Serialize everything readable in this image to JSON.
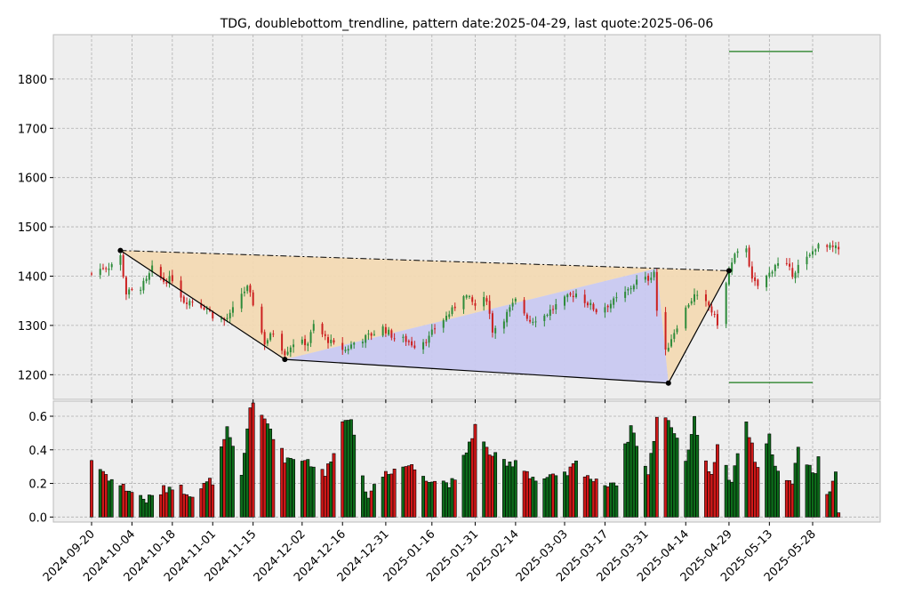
{
  "chart_data": {
    "type": "candlestick",
    "title": "TDG, doublebottom_trendline, pattern date:2025-04-29, last quote:2025-06-06",
    "ylim": [
      1150,
      1890
    ],
    "volume_ylim": [
      -0.03,
      0.69
    ],
    "price_ticks": [
      1200,
      1300,
      1400,
      1500,
      1600,
      1700,
      1800
    ],
    "volume_ticks": [
      0.0,
      0.2,
      0.4,
      0.6
    ],
    "volume_tick_labels": [
      "0.0",
      "0.2",
      "0.4",
      "0.6"
    ],
    "x_tick_dates": [
      "2024-09-20",
      "2024-10-04",
      "2024-10-18",
      "2024-11-01",
      "2024-11-15",
      "2024-12-02",
      "2024-12-16",
      "2024-12-31",
      "2025-01-16",
      "2025-01-31",
      "2025-02-14",
      "2025-03-03",
      "2025-03-17",
      "2025-03-31",
      "2025-04-14",
      "2025-04-29",
      "2025-05-13",
      "2025-05-28"
    ],
    "pattern_points": [
      {
        "date": "2024-09-30",
        "price": 1452
      },
      {
        "date": "2024-11-26",
        "price": 1231
      },
      {
        "date": "2025-04-08",
        "price": 1183
      },
      {
        "date": "2025-04-29",
        "price": 1411
      }
    ],
    "trendline": {
      "from": {
        "date": "2024-09-30",
        "price": 1452
      },
      "to": {
        "date": "2025-04-29",
        "price": 1411
      }
    },
    "target_lines": [
      {
        "price": 1856,
        "from": "2025-04-29",
        "to": "2025-05-28"
      },
      {
        "price": 1184,
        "from": "2025-04-29",
        "to": "2025-05-28"
      }
    ],
    "colors": {
      "up": "#2e8b3a",
      "down": "#cc2020",
      "bg": "#eeeeee",
      "fill_top": "#f2d9b3",
      "fill_bottom": "#c8c8f0",
      "target": "#1a7a1a"
    },
    "price_anchors": [
      [
        "2024-09-20",
        1405
      ],
      [
        "2024-09-24",
        1418
      ],
      [
        "2024-09-26",
        1420
      ],
      [
        "2024-09-30",
        1440
      ],
      [
        "2024-10-02",
        1365
      ],
      [
        "2024-10-07",
        1378
      ],
      [
        "2024-10-09",
        1390
      ],
      [
        "2024-10-11",
        1415
      ],
      [
        "2024-10-15",
        1390
      ],
      [
        "2024-10-18",
        1395
      ],
      [
        "2024-10-22",
        1350
      ],
      [
        "2024-10-25",
        1350
      ],
      [
        "2024-10-30",
        1335
      ],
      [
        "2024-11-01",
        1320
      ],
      [
        "2024-11-05",
        1310
      ],
      [
        "2024-11-07",
        1320
      ],
      [
        "2024-11-11",
        1365
      ],
      [
        "2024-11-13",
        1375
      ],
      [
        "2024-11-15",
        1345
      ],
      [
        "2024-11-19",
        1265
      ],
      [
        "2024-11-22",
        1285
      ],
      [
        "2024-11-26",
        1245
      ],
      [
        "2024-11-29",
        1265
      ],
      [
        "2024-12-04",
        1265
      ],
      [
        "2024-12-06",
        1300
      ],
      [
        "2024-12-10",
        1275
      ],
      [
        "2024-12-13",
        1260
      ],
      [
        "2024-12-17",
        1250
      ],
      [
        "2024-12-20",
        1265
      ],
      [
        "2024-12-24",
        1275
      ],
      [
        "2024-12-30",
        1295
      ],
      [
        "2025-01-03",
        1275
      ],
      [
        "2025-01-07",
        1270
      ],
      [
        "2025-01-10",
        1260
      ],
      [
        "2025-01-15",
        1275
      ],
      [
        "2025-01-17",
        1295
      ],
      [
        "2025-01-23",
        1330
      ],
      [
        "2025-01-27",
        1365
      ],
      [
        "2025-01-31",
        1340
      ],
      [
        "2025-02-04",
        1355
      ],
      [
        "2025-02-06",
        1290
      ],
      [
        "2025-02-10",
        1315
      ],
      [
        "2025-02-14",
        1350
      ],
      [
        "2025-02-19",
        1310
      ],
      [
        "2025-02-24",
        1320
      ],
      [
        "2025-02-28",
        1340
      ],
      [
        "2025-03-05",
        1360
      ],
      [
        "2025-03-07",
        1365
      ],
      [
        "2025-03-11",
        1345
      ],
      [
        "2025-03-14",
        1330
      ],
      [
        "2025-03-19",
        1345
      ],
      [
        "2025-03-24",
        1365
      ],
      [
        "2025-03-28",
        1390
      ],
      [
        "2025-04-01",
        1395
      ],
      [
        "2025-04-03",
        1410
      ],
      [
        "2025-04-04",
        1330
      ],
      [
        "2025-04-07",
        1245
      ],
      [
        "2025-04-09",
        1275
      ],
      [
        "2025-04-11",
        1300
      ],
      [
        "2025-04-15",
        1345
      ],
      [
        "2025-04-17",
        1360
      ],
      [
        "2025-04-22",
        1340
      ],
      [
        "2025-04-25",
        1305
      ],
      [
        "2025-04-29",
        1410
      ],
      [
        "2025-05-01",
        1440
      ],
      [
        "2025-05-05",
        1460
      ],
      [
        "2025-05-07",
        1390
      ],
      [
        "2025-05-09",
        1380
      ],
      [
        "2025-05-13",
        1405
      ],
      [
        "2025-05-15",
        1425
      ],
      [
        "2025-05-19",
        1420
      ],
      [
        "2025-05-21",
        1405
      ],
      [
        "2025-05-23",
        1420
      ],
      [
        "2025-05-27",
        1440
      ],
      [
        "2025-05-29",
        1460
      ],
      [
        "2025-06-02",
        1458
      ],
      [
        "2025-06-06",
        1455
      ]
    ],
    "volume_anchors": [
      [
        "2024-09-20",
        0.34
      ],
      [
        "2024-09-27",
        0.22
      ],
      [
        "2024-10-04",
        0.15
      ],
      [
        "2024-10-09",
        0.1
      ],
      [
        "2024-10-18",
        0.19
      ],
      [
        "2024-10-25",
        0.14
      ],
      [
        "2024-11-01",
        0.22
      ],
      [
        "2024-11-06",
        0.51
      ],
      [
        "2024-11-11",
        0.24
      ],
      [
        "2024-11-14",
        0.67
      ],
      [
        "2024-11-20",
        0.56
      ],
      [
        "2024-11-26",
        0.35
      ],
      [
        "2024-12-03",
        0.35
      ],
      [
        "2024-12-10",
        0.25
      ],
      [
        "2024-12-16",
        0.56
      ],
      [
        "2024-12-19",
        0.61
      ],
      [
        "2024-12-24",
        0.12
      ],
      [
        "2024-12-31",
        0.27
      ],
      [
        "2025-01-08",
        0.31
      ],
      [
        "2025-01-16",
        0.22
      ],
      [
        "2025-01-24",
        0.2
      ],
      [
        "2025-01-31",
        0.54
      ],
      [
        "2025-02-04",
        0.4
      ],
      [
        "2025-02-11",
        0.3
      ],
      [
        "2025-02-14",
        0.34
      ],
      [
        "2025-02-21",
        0.22
      ],
      [
        "2025-03-03",
        0.24
      ],
      [
        "2025-03-07",
        0.32
      ],
      [
        "2025-03-14",
        0.2
      ],
      [
        "2025-03-21",
        0.21
      ],
      [
        "2025-03-26",
        0.54
      ],
      [
        "2025-04-01",
        0.25
      ],
      [
        "2025-04-04",
        0.58
      ],
      [
        "2025-04-07",
        0.61
      ],
      [
        "2025-04-10",
        0.51
      ],
      [
        "2025-04-14",
        0.34
      ],
      [
        "2025-04-17",
        0.57
      ],
      [
        "2025-04-23",
        0.23
      ],
      [
        "2025-04-25",
        0.45
      ],
      [
        "2025-04-30",
        0.18
      ],
      [
        "2025-05-02",
        0.38
      ],
      [
        "2025-05-05",
        0.56
      ],
      [
        "2025-05-09",
        0.27
      ],
      [
        "2025-05-13",
        0.47
      ],
      [
        "2025-05-16",
        0.26
      ],
      [
        "2025-05-21",
        0.18
      ],
      [
        "2025-05-23",
        0.43
      ],
      [
        "2025-05-29",
        0.24
      ],
      [
        "2025-05-30",
        0.38
      ],
      [
        "2025-06-02",
        0.15
      ],
      [
        "2025-06-05",
        0.24
      ],
      [
        "2025-06-06",
        0.01
      ]
    ]
  }
}
